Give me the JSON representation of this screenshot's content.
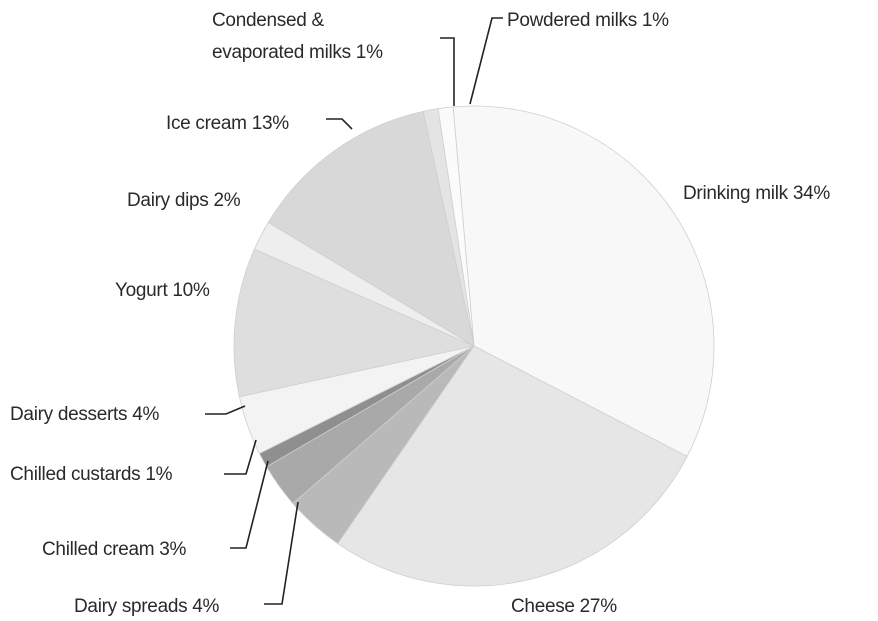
{
  "chart_data": {
    "type": "pie",
    "title": "",
    "slices": [
      {
        "label": "Drinking milk 34%",
        "value": 34,
        "color": "#f8f8f8"
      },
      {
        "label": "Cheese 27%",
        "value": 27,
        "color": "#e6e6e6"
      },
      {
        "label": "Dairy spreads 4%",
        "value": 4,
        "color": "#b9b9b9"
      },
      {
        "label": "Chilled cream 3%",
        "value": 3,
        "color": "#a9a9a9"
      },
      {
        "label": "Chilled custards 1%",
        "value": 1,
        "color": "#8f8f8f"
      },
      {
        "label": "Dairy desserts 4%",
        "value": 4,
        "color": "#f3f3f3"
      },
      {
        "label": "Yogurt 10%",
        "value": 10,
        "color": "#dedede"
      },
      {
        "label": "Dairy dips 2%",
        "value": 2,
        "color": "#eeeeee"
      },
      {
        "label": "Ice cream 13%",
        "value": 13,
        "color": "#d8d8d8"
      },
      {
        "label": "Condensed & evaporated milks 1%",
        "value": 1,
        "color": "#e4e4e4"
      },
      {
        "label": "Powdered milks 1%",
        "value": 1,
        "color": "#fbfbfb"
      }
    ]
  }
}
